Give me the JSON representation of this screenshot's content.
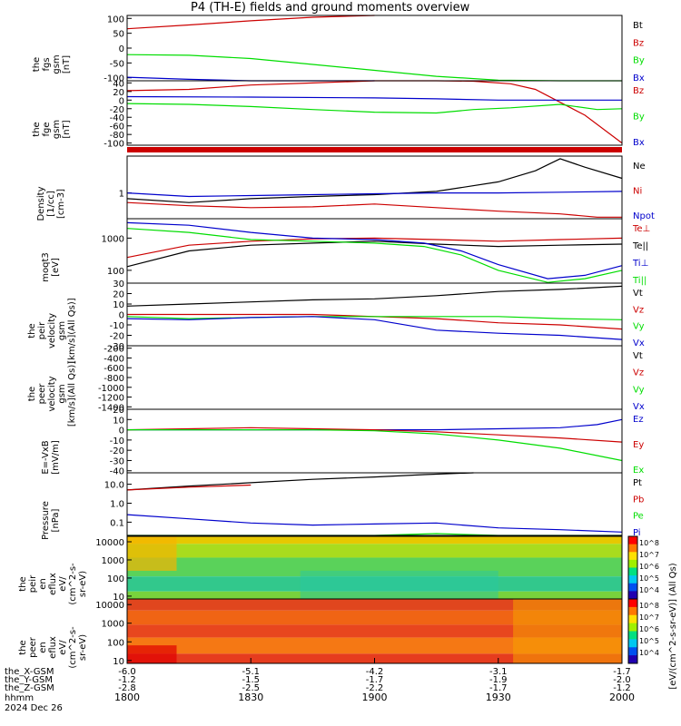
{
  "title": "P4 (TH-E) fields and ground moments overview",
  "colors": {
    "black": "#000000",
    "red": "#cc0000",
    "green": "#00dd00",
    "blue": "#0000cc"
  },
  "ephemeris": {
    "row_labels": [
      "the_X-GSM",
      "the_Y-GSM",
      "the_Z-GSM",
      "hhmm",
      "2024 Dec 26"
    ],
    "columns": [
      {
        "x": "-6.0",
        "y": "-1.2",
        "z": "-2.8",
        "hhmm": "1800"
      },
      {
        "x": "-5.1",
        "y": "-1.5",
        "z": "-2.5",
        "hhmm": "1830"
      },
      {
        "x": "-4.2",
        "y": "-1.7",
        "z": "-2.2",
        "hhmm": "1900"
      },
      {
        "x": "-3.1",
        "y": "-1.9",
        "z": "-1.7",
        "hhmm": "1930"
      },
      {
        "x": "-1.7",
        "y": "-2.0",
        "z": "-1.2",
        "hhmm": "2000"
      }
    ]
  },
  "spectrogram_colorbar": {
    "label": "[eV/(cm^2-s-sr-eV)] (All Qs)",
    "ticks": [
      "10^8",
      "10^7",
      "10^6",
      "10^5",
      "10^4",
      "10^3",
      "10^2"
    ]
  },
  "chart_data": [
    {
      "type": "line",
      "id": "fgs",
      "ylabel_lines": [
        "the",
        "fgs",
        "gsm",
        "[nT]"
      ],
      "ylim": [
        -110,
        110
      ],
      "yticks": [
        "100",
        "50",
        "0",
        "-50",
        "-100"
      ],
      "series": [
        {
          "name": "Bt",
          "color": "#000000",
          "x": [],
          "y": []
        },
        {
          "name": "Bz",
          "color": "#cc0000",
          "x": [
            18.0,
            18.25,
            18.5,
            18.75,
            19.0
          ],
          "y": [
            65,
            78,
            92,
            104,
            112
          ]
        },
        {
          "name": "By",
          "color": "#00dd00",
          "x": [
            18.0,
            18.25,
            18.5,
            18.75,
            19.0,
            19.25,
            19.5,
            19.75,
            20.0
          ],
          "y": [
            -22,
            -24,
            -35,
            -55,
            -75,
            -95,
            -108,
            -112,
            -114
          ]
        },
        {
          "name": "Bx",
          "color": "#0000cc",
          "x": [
            18.0,
            18.25,
            18.5,
            18.75,
            19.0
          ],
          "y": [
            -98,
            -105,
            -110,
            -112,
            -114
          ]
        }
      ]
    },
    {
      "type": "line",
      "id": "fge",
      "ylabel_lines": [
        "the",
        "fge",
        "gsm",
        "[nT]"
      ],
      "ylim": [
        -105,
        45
      ],
      "yticks": [
        "40",
        "20",
        "0",
        "-20",
        "-40",
        "-60",
        "-80",
        "-100"
      ],
      "series": [
        {
          "name": "Bz",
          "color": "#cc0000",
          "x": [
            18.0,
            18.25,
            18.5,
            18.75,
            19.0,
            19.25,
            19.4,
            19.55,
            19.65,
            19.75,
            19.85,
            20.0
          ],
          "y": [
            22,
            25,
            35,
            40,
            45,
            50,
            44,
            38,
            25,
            -5,
            -35,
            -100
          ]
        },
        {
          "name": "By",
          "color": "#00dd00",
          "x": [
            18.0,
            18.25,
            18.5,
            18.75,
            19.0,
            19.25,
            19.4,
            19.55,
            19.75,
            19.9,
            20.0
          ],
          "y": [
            -8,
            -10,
            -15,
            -22,
            -28,
            -30,
            -22,
            -18,
            -10,
            -22,
            -20
          ]
        },
        {
          "name": "Bx",
          "color": "#0000cc",
          "x": [
            18.0,
            18.5,
            19.0,
            19.25,
            19.5,
            19.75,
            20.0
          ],
          "y": [
            8,
            7,
            5,
            3,
            0,
            0,
            0
          ]
        }
      ]
    },
    {
      "type": "line",
      "id": "density",
      "ylabel_lines": [
        "Density",
        "[1/cc]",
        "[cm-3]"
      ],
      "ylim": [
        0.2,
        10
      ],
      "yticks": [
        "1"
      ],
      "scale": "log",
      "series": [
        {
          "name": "Ne",
          "color": "#000000",
          "x": [
            18.0,
            18.25,
            18.5,
            18.75,
            19.0,
            19.25,
            19.5,
            19.65,
            19.75,
            19.85,
            20.0
          ],
          "y": [
            0.7,
            0.55,
            0.7,
            0.8,
            0.9,
            1.1,
            2.0,
            4.0,
            8.5,
            5.0,
            2.5
          ]
        },
        {
          "name": "Ni",
          "color": "#cc0000",
          "x": [
            18.0,
            18.25,
            18.5,
            18.75,
            19.0,
            19.25,
            19.5,
            19.75,
            19.9,
            20.0
          ],
          "y": [
            0.55,
            0.45,
            0.4,
            0.42,
            0.5,
            0.4,
            0.32,
            0.27,
            0.22,
            0.22
          ]
        },
        {
          "name": "Npot",
          "color": "#0000cc",
          "x": [
            18.0,
            18.25,
            18.5,
            18.75,
            19.0,
            19.25,
            19.5,
            19.75,
            20.0
          ],
          "y": [
            1.0,
            0.8,
            0.85,
            0.9,
            0.95,
            1.0,
            1.0,
            1.05,
            1.1
          ]
        }
      ]
    },
    {
      "type": "line",
      "id": "temps",
      "ylabel_lines": [
        "moqt3",
        "[eV]"
      ],
      "ylim": [
        40,
        4000
      ],
      "yticks": [
        "1000",
        "100"
      ],
      "scale": "log",
      "series": [
        {
          "name": "Te⊥",
          "color": "#cc0000",
          "x": [
            18.0,
            18.25,
            18.5,
            18.75,
            19.0,
            19.25,
            19.5,
            19.75,
            20.0
          ],
          "y": [
            250,
            600,
            800,
            950,
            1000,
            900,
            800,
            900,
            1000
          ]
        },
        {
          "name": "Te||",
          "color": "#000000",
          "x": [
            18.0,
            18.25,
            18.5,
            18.75,
            19.0,
            19.25,
            19.5,
            19.75,
            20.0
          ],
          "y": [
            130,
            400,
            600,
            700,
            800,
            650,
            550,
            600,
            650
          ]
        },
        {
          "name": "Ti⊥",
          "color": "#0000cc",
          "x": [
            18.0,
            18.25,
            18.5,
            18.75,
            19.0,
            19.2,
            19.35,
            19.5,
            19.7,
            19.85,
            20.0
          ],
          "y": [
            3000,
            2500,
            1500,
            1000,
            900,
            700,
            400,
            150,
            55,
            70,
            140
          ]
        },
        {
          "name": "Ti||",
          "color": "#00dd00",
          "x": [
            18.0,
            18.25,
            18.5,
            18.75,
            19.0,
            19.2,
            19.35,
            19.5,
            19.7,
            19.85,
            20.0
          ],
          "y": [
            2000,
            1500,
            900,
            800,
            700,
            550,
            300,
            100,
            42,
            55,
            100
          ]
        }
      ]
    },
    {
      "type": "line",
      "id": "peir-velocity",
      "ylabel_lines": [
        "the",
        "peir",
        "velocity",
        "gsm",
        "[km/s](All Qs)]"
      ],
      "ylim": [
        -30,
        30
      ],
      "yticks": [
        "30",
        "20",
        "10",
        "0",
        "-10",
        "-20",
        "-30"
      ],
      "series": [
        {
          "name": "Vt",
          "color": "#000000",
          "x": [
            18.0,
            18.25,
            18.5,
            18.75,
            19.0,
            19.25,
            19.5,
            19.75,
            20.0
          ],
          "y": [
            8,
            10,
            12,
            14,
            15,
            18,
            22,
            24,
            27
          ]
        },
        {
          "name": "Vz",
          "color": "#cc0000",
          "x": [
            18.0,
            18.25,
            18.5,
            18.75,
            19.0,
            19.25,
            19.5,
            19.75,
            20.0
          ],
          "y": [
            0,
            0,
            0,
            0,
            -2,
            -4,
            -8,
            -10,
            -14
          ]
        },
        {
          "name": "Vy",
          "color": "#00dd00",
          "x": [
            18.0,
            18.25,
            18.5,
            18.75,
            19.0,
            19.25,
            19.5,
            19.75,
            20.0
          ],
          "y": [
            -2,
            -4,
            -3,
            -2,
            -2,
            -2,
            -2,
            -4,
            -5
          ]
        },
        {
          "name": "Vx",
          "color": "#0000cc",
          "x": [
            18.0,
            18.25,
            18.5,
            18.75,
            19.0,
            19.25,
            19.5,
            19.75,
            20.0
          ],
          "y": [
            -4,
            -5,
            -3,
            -2,
            -5,
            -15,
            -18,
            -20,
            -24
          ]
        }
      ]
    },
    {
      "type": "line",
      "id": "peer-velocity",
      "ylabel_lines": [
        "the",
        "peer",
        "velocity",
        "gsm",
        "[km/s](All Qs)]"
      ],
      "ylim": [
        -1450,
        -150
      ],
      "yticks": [
        "-200",
        "-400",
        "-600",
        "-800",
        "-1000",
        "-1200",
        "-1400"
      ],
      "series": [
        {
          "name": "Vt",
          "color": "#000000",
          "x": [],
          "y": []
        },
        {
          "name": "Vz",
          "color": "#cc0000",
          "x": [],
          "y": []
        },
        {
          "name": "Vy",
          "color": "#00dd00",
          "x": [],
          "y": []
        },
        {
          "name": "Vx",
          "color": "#0000cc",
          "x": [],
          "y": []
        }
      ]
    },
    {
      "type": "line",
      "id": "efield",
      "ylabel_lines": [
        "E=-VxB",
        "[mV/m]"
      ],
      "ylim": [
        -42,
        20
      ],
      "yticks": [
        "20",
        "10",
        "0",
        "-10",
        "-20",
        "-30",
        "-40"
      ],
      "series": [
        {
          "name": "Ez",
          "color": "#0000cc",
          "x": [
            18.0,
            18.25,
            18.5,
            18.75,
            19.0,
            19.25,
            19.5,
            19.75,
            19.9,
            20.0
          ],
          "y": [
            0,
            0,
            0,
            0,
            0,
            0,
            1,
            2,
            5,
            10
          ]
        },
        {
          "name": "Ey",
          "color": "#cc0000",
          "x": [
            18.0,
            18.25,
            18.5,
            18.75,
            19.0,
            19.25,
            19.5,
            19.75,
            20.0
          ],
          "y": [
            0,
            1,
            2,
            1,
            0,
            -2,
            -5,
            -8,
            -12
          ]
        },
        {
          "name": "Ex",
          "color": "#00dd00",
          "x": [
            18.0,
            18.25,
            18.5,
            18.75,
            19.0,
            19.25,
            19.5,
            19.75,
            20.0
          ],
          "y": [
            0,
            0,
            0,
            0,
            -1,
            -4,
            -10,
            -18,
            -30
          ]
        }
      ]
    },
    {
      "type": "line",
      "id": "pressure",
      "ylabel_lines": [
        "Pressure",
        "[nPa]"
      ],
      "ylim": [
        0.02,
        40
      ],
      "yticks": [
        "10.0",
        "1.0",
        "0.1"
      ],
      "scale": "log",
      "series": [
        {
          "name": "Pt",
          "color": "#000000",
          "x": [
            18.0,
            18.25,
            18.5,
            18.75,
            19.0,
            19.2,
            19.4
          ],
          "y": [
            5,
            8,
            12,
            18,
            24,
            32,
            40
          ]
        },
        {
          "name": "Pb",
          "color": "#cc0000",
          "x": [
            18.0,
            18.25,
            18.5
          ],
          "y": [
            5,
            7,
            9
          ]
        },
        {
          "name": "Pe",
          "color": "#00dd00",
          "x": [
            18.0,
            18.25,
            18.5,
            18.75,
            19.0,
            19.25,
            19.5,
            19.75,
            20.0
          ],
          "y": [
            0.02,
            0.02,
            0.02,
            0.02,
            0.02,
            0.025,
            0.02,
            0.02,
            0.02
          ]
        },
        {
          "name": "Pi",
          "color": "#0000cc",
          "x": [
            18.0,
            18.25,
            18.5,
            18.75,
            19.0,
            19.25,
            19.5,
            19.75,
            20.0
          ],
          "y": [
            0.25,
            0.15,
            0.09,
            0.07,
            0.08,
            0.09,
            0.05,
            0.04,
            0.03
          ]
        }
      ]
    },
    {
      "type": "heatmap",
      "id": "peir-spectrogram",
      "ylabel_lines": [
        "the",
        "peir",
        "en",
        "eflux",
        "eV/",
        "(cm^2-s-",
        "sr-eV)"
      ],
      "yticks": [
        "10000",
        "1000",
        "100",
        "10"
      ]
    },
    {
      "type": "heatmap",
      "id": "peer-spectrogram",
      "ylabel_lines": [
        "the",
        "peer",
        "en",
        "eflux",
        "eV/",
        "(cm^2-s-",
        "sr-eV)"
      ],
      "yticks": [
        "10000",
        "1000",
        "100",
        "10"
      ]
    }
  ]
}
